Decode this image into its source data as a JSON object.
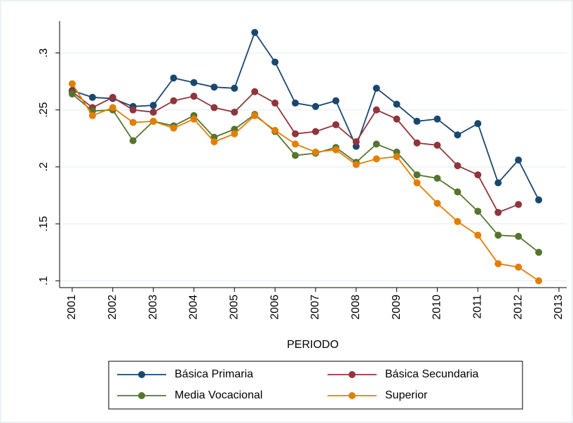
{
  "chart_data": {
    "type": "line",
    "x_label": "PERIODO",
    "x": [
      2001,
      2001.5,
      2002,
      2002.5,
      2003,
      2003.5,
      2004,
      2004.5,
      2005,
      2005.5,
      2006,
      2006.5,
      2007,
      2007.5,
      2008,
      2008.5,
      2009,
      2009.5,
      2010,
      2010.5,
      2011,
      2011.5,
      2012,
      2012.5
    ],
    "series": [
      {
        "name": "Básica Primaria",
        "color": "#1a476f",
        "values": [
          0.267,
          0.261,
          0.26,
          0.253,
          0.254,
          0.278,
          0.274,
          0.27,
          0.269,
          0.318,
          0.292,
          0.256,
          0.253,
          0.258,
          0.218,
          0.269,
          0.255,
          0.24,
          0.242,
          0.228,
          0.238,
          0.186,
          0.206,
          0.171
        ]
      },
      {
        "name": "Básica Secundaria",
        "color": "#90353b",
        "values": [
          0.266,
          0.252,
          0.261,
          0.25,
          0.248,
          0.258,
          0.262,
          0.252,
          0.248,
          0.266,
          0.256,
          0.229,
          0.231,
          0.237,
          0.222,
          0.25,
          0.242,
          0.221,
          0.219,
          0.201,
          0.193,
          0.16,
          0.167,
          null
        ]
      },
      {
        "name": "Media Vocacional",
        "color": "#55752f",
        "values": [
          0.264,
          0.249,
          0.25,
          0.223,
          0.24,
          0.236,
          0.245,
          0.226,
          0.233,
          0.246,
          0.231,
          0.21,
          0.212,
          0.217,
          0.204,
          0.22,
          0.213,
          0.193,
          0.19,
          0.178,
          0.161,
          0.14,
          0.139,
          0.125
        ]
      },
      {
        "name": "Superior",
        "color": "#e37e00",
        "values": [
          0.273,
          0.245,
          0.252,
          0.239,
          0.24,
          0.234,
          0.242,
          0.222,
          0.229,
          0.245,
          0.232,
          0.22,
          0.213,
          0.215,
          0.202,
          0.207,
          0.209,
          0.186,
          0.168,
          0.152,
          0.14,
          0.115,
          0.112,
          0.1
        ]
      }
    ],
    "xlim": [
      2000.69,
      2013.19
    ],
    "xticks": [
      2001,
      2002,
      2003,
      2004,
      2005,
      2006,
      2007,
      2008,
      2009,
      2010,
      2011,
      2012,
      2013
    ],
    "ylim": [
      0.094,
      0.328
    ],
    "yticks": [
      {
        "value": 0.1,
        "label": ".1"
      },
      {
        "value": 0.15,
        "label": ".15"
      },
      {
        "value": 0.2,
        "label": ".2"
      },
      {
        "value": 0.25,
        "label": ".25"
      },
      {
        "value": 0.3,
        "label": ".3"
      }
    ],
    "grid": true,
    "legend": "bottom"
  }
}
